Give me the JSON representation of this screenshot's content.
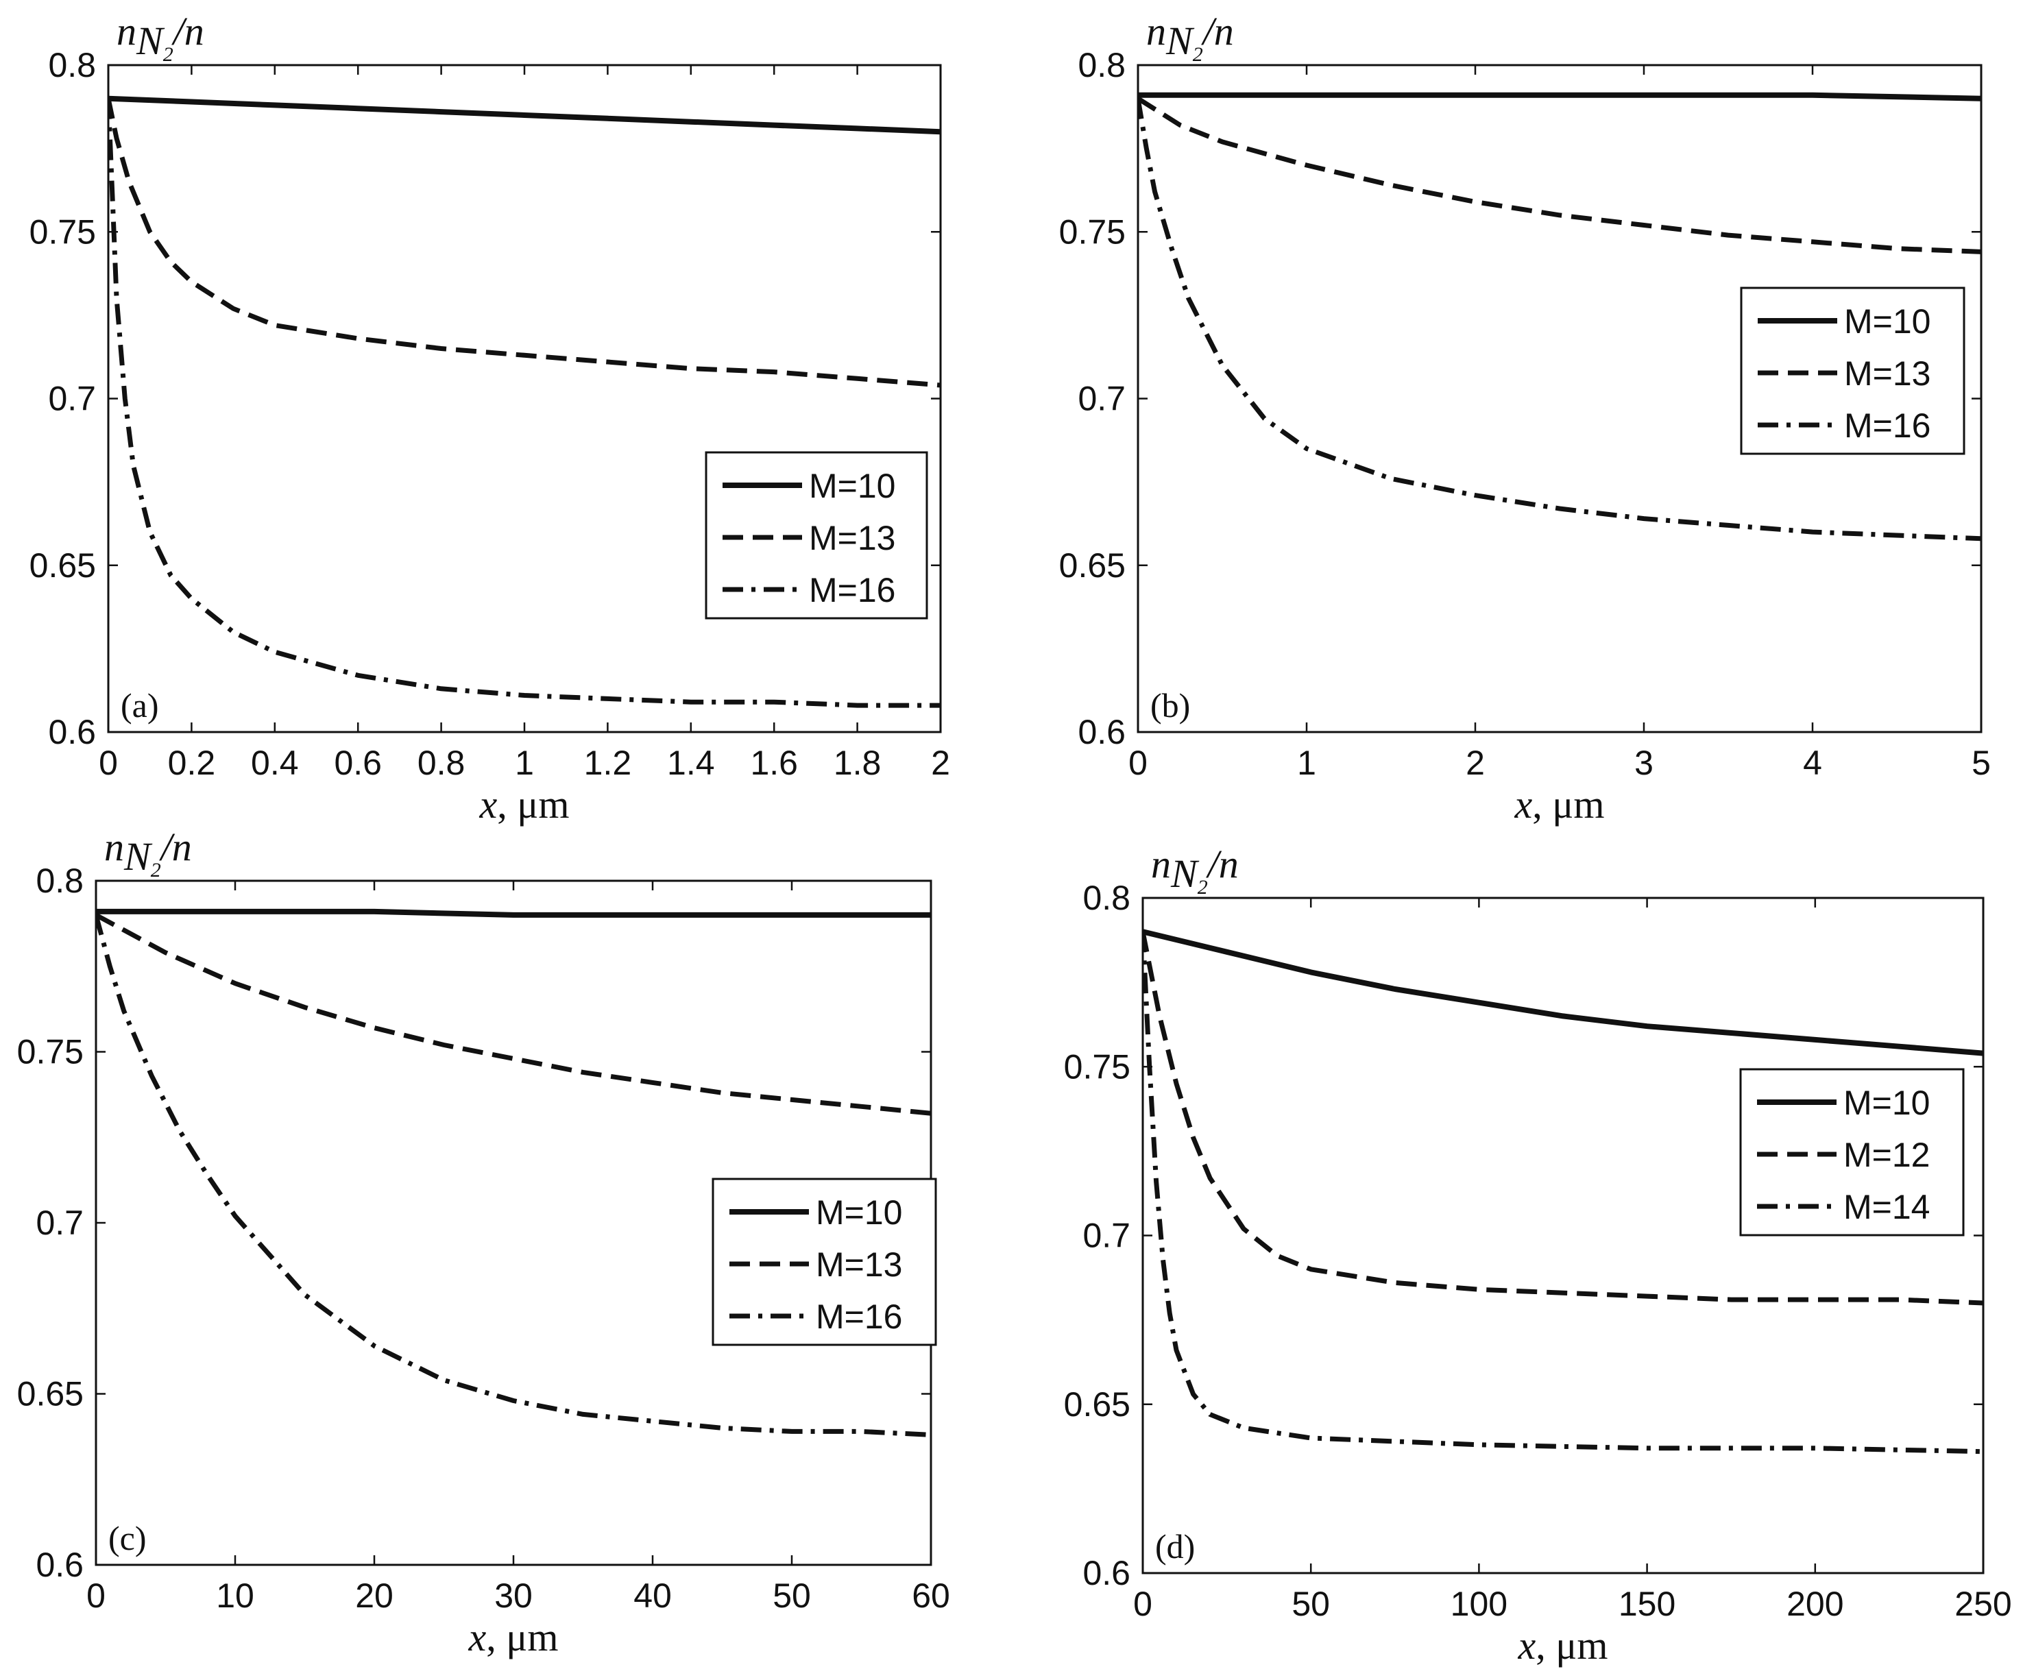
{
  "chart_data": [
    {
      "type": "line",
      "panel_label": "(a)",
      "ylabel": {
        "base": "n",
        "sub": "N",
        "subsub": "2",
        "tail": "/n"
      },
      "xlabel": {
        "var": "x",
        "unit": ", μm"
      },
      "xlim": [
        0,
        2
      ],
      "ylim": [
        0.6,
        0.8
      ],
      "xticks": [
        0,
        0.2,
        0.4,
        0.6,
        0.8,
        1,
        1.2,
        1.4,
        1.6,
        1.8,
        2
      ],
      "xtick_labels": [
        "0",
        "0.2",
        "0.4",
        "0.6",
        "0.8",
        "1",
        "1.2",
        "1.4",
        "1.6",
        "1.8",
        "2"
      ],
      "yticks": [
        0.6,
        0.65,
        0.7,
        0.75,
        0.8
      ],
      "ytick_labels": [
        "0.6",
        "0.65",
        "0.7",
        "0.75",
        "0.8"
      ],
      "legend_position": "middle-right",
      "series": [
        {
          "name": "M=10",
          "style": "solid",
          "x": [
            0,
            0.2,
            0.4,
            0.6,
            0.8,
            1,
            1.2,
            1.4,
            1.6,
            1.8,
            2
          ],
          "y": [
            0.79,
            0.789,
            0.788,
            0.787,
            0.786,
            0.785,
            0.784,
            0.783,
            0.782,
            0.781,
            0.78
          ]
        },
        {
          "name": "M=13",
          "style": "dashed",
          "x": [
            0,
            0.02,
            0.05,
            0.1,
            0.15,
            0.2,
            0.3,
            0.4,
            0.6,
            0.8,
            1,
            1.2,
            1.4,
            1.6,
            1.8,
            2
          ],
          "y": [
            0.79,
            0.778,
            0.765,
            0.75,
            0.741,
            0.735,
            0.727,
            0.722,
            0.718,
            0.715,
            0.713,
            0.711,
            0.709,
            0.708,
            0.706,
            0.704
          ]
        },
        {
          "name": "M=16",
          "style": "dashdot",
          "x": [
            0,
            0.01,
            0.02,
            0.04,
            0.06,
            0.1,
            0.15,
            0.2,
            0.3,
            0.4,
            0.6,
            0.8,
            1,
            1.2,
            1.4,
            1.6,
            1.8,
            2
          ],
          "y": [
            0.79,
            0.76,
            0.73,
            0.7,
            0.68,
            0.66,
            0.647,
            0.64,
            0.63,
            0.624,
            0.617,
            0.613,
            0.611,
            0.61,
            0.609,
            0.609,
            0.608,
            0.608
          ]
        }
      ]
    },
    {
      "type": "line",
      "panel_label": "(b)",
      "ylabel": {
        "base": "n",
        "sub": "N",
        "subsub": "2",
        "tail": "/n"
      },
      "xlabel": {
        "var": "x",
        "unit": ", μm"
      },
      "xlim": [
        0,
        5
      ],
      "ylim": [
        0.6,
        0.8
      ],
      "xticks": [
        0,
        1,
        2,
        3,
        4,
        5
      ],
      "xtick_labels": [
        "0",
        "1",
        "2",
        "3",
        "4",
        "5"
      ],
      "yticks": [
        0.6,
        0.65,
        0.7,
        0.75,
        0.8
      ],
      "ytick_labels": [
        "0.6",
        "0.65",
        "0.7",
        "0.75",
        "0.8"
      ],
      "legend_position": "upper-right",
      "series": [
        {
          "name": "M=10",
          "style": "solid",
          "x": [
            0,
            1,
            2,
            3,
            4,
            5
          ],
          "y": [
            0.791,
            0.791,
            0.791,
            0.791,
            0.791,
            0.79
          ]
        },
        {
          "name": "M=13",
          "style": "dashed",
          "x": [
            0,
            0.25,
            0.5,
            1,
            1.5,
            2,
            2.5,
            3,
            3.5,
            4,
            4.5,
            5
          ],
          "y": [
            0.79,
            0.782,
            0.777,
            0.77,
            0.764,
            0.759,
            0.755,
            0.752,
            0.749,
            0.747,
            0.745,
            0.744
          ]
        },
        {
          "name": "M=16",
          "style": "dashdot",
          "x": [
            0,
            0.05,
            0.1,
            0.2,
            0.3,
            0.5,
            0.75,
            1,
            1.5,
            2,
            2.5,
            3,
            3.5,
            4,
            4.5,
            5
          ],
          "y": [
            0.79,
            0.775,
            0.762,
            0.745,
            0.73,
            0.71,
            0.694,
            0.685,
            0.676,
            0.671,
            0.667,
            0.664,
            0.662,
            0.66,
            0.659,
            0.658
          ]
        }
      ]
    },
    {
      "type": "line",
      "panel_label": "(c)",
      "ylabel": {
        "base": "n",
        "sub": "N",
        "subsub": "2",
        "tail": "/n"
      },
      "xlabel": {
        "var": "x",
        "unit": ", μm"
      },
      "xlim": [
        0,
        60
      ],
      "ylim": [
        0.6,
        0.8
      ],
      "xticks": [
        0,
        10,
        20,
        30,
        40,
        50,
        60
      ],
      "xtick_labels": [
        "0",
        "10",
        "20",
        "30",
        "40",
        "50",
        "60"
      ],
      "yticks": [
        0.6,
        0.65,
        0.7,
        0.75,
        0.8
      ],
      "ytick_labels": [
        "0.6",
        "0.65",
        "0.7",
        "0.75",
        "0.8"
      ],
      "legend_position": "middle-right",
      "series": [
        {
          "name": "M=10",
          "style": "solid",
          "x": [
            0,
            10,
            20,
            30,
            40,
            50,
            60
          ],
          "y": [
            0.791,
            0.791,
            0.791,
            0.79,
            0.79,
            0.79,
            0.79
          ]
        },
        {
          "name": "M=13",
          "style": "dashed",
          "x": [
            0,
            5,
            10,
            15,
            20,
            25,
            30,
            35,
            40,
            45,
            50,
            55,
            60
          ],
          "y": [
            0.79,
            0.779,
            0.77,
            0.763,
            0.757,
            0.752,
            0.748,
            0.744,
            0.741,
            0.738,
            0.736,
            0.734,
            0.732
          ]
        },
        {
          "name": "M=16",
          "style": "dashdot",
          "x": [
            0,
            1,
            2,
            4,
            6,
            8,
            10,
            15,
            20,
            25,
            30,
            35,
            40,
            45,
            50,
            55,
            60
          ],
          "y": [
            0.79,
            0.775,
            0.762,
            0.743,
            0.727,
            0.714,
            0.702,
            0.679,
            0.664,
            0.654,
            0.648,
            0.644,
            0.642,
            0.64,
            0.639,
            0.639,
            0.638
          ]
        }
      ]
    },
    {
      "type": "line",
      "panel_label": "(d)",
      "ylabel": {
        "base": "n",
        "sub": "N",
        "subsub": "2",
        "tail": "/n"
      },
      "xlabel": {
        "var": "x",
        "unit": ", μm"
      },
      "xlim": [
        0,
        250
      ],
      "ylim": [
        0.6,
        0.8
      ],
      "xticks": [
        0,
        50,
        100,
        150,
        200,
        250
      ],
      "xtick_labels": [
        "0",
        "50",
        "100",
        "150",
        "200",
        "250"
      ],
      "yticks": [
        0.6,
        0.65,
        0.7,
        0.75,
        0.8
      ],
      "ytick_labels": [
        "0.6",
        "0.65",
        "0.7",
        "0.75",
        "0.8"
      ],
      "legend_position": "middle-right",
      "series": [
        {
          "name": "M=10",
          "style": "solid",
          "x": [
            0,
            25,
            50,
            75,
            100,
            125,
            150,
            175,
            200,
            225,
            250
          ],
          "y": [
            0.79,
            0.784,
            0.778,
            0.773,
            0.769,
            0.765,
            0.762,
            0.76,
            0.758,
            0.756,
            0.754
          ]
        },
        {
          "name": "M=12",
          "style": "dashed",
          "x": [
            0,
            5,
            10,
            15,
            20,
            30,
            40,
            50,
            75,
            100,
            125,
            150,
            175,
            200,
            225,
            250
          ],
          "y": [
            0.79,
            0.765,
            0.745,
            0.729,
            0.717,
            0.702,
            0.694,
            0.69,
            0.686,
            0.684,
            0.683,
            0.682,
            0.681,
            0.681,
            0.681,
            0.68
          ]
        },
        {
          "name": "M=14",
          "style": "dashdot",
          "x": [
            0,
            2,
            4,
            6,
            8,
            10,
            15,
            20,
            30,
            50,
            75,
            100,
            150,
            200,
            250
          ],
          "y": [
            0.79,
            0.75,
            0.716,
            0.693,
            0.677,
            0.666,
            0.653,
            0.647,
            0.643,
            0.64,
            0.639,
            0.638,
            0.637,
            0.637,
            0.636
          ]
        }
      ]
    }
  ]
}
